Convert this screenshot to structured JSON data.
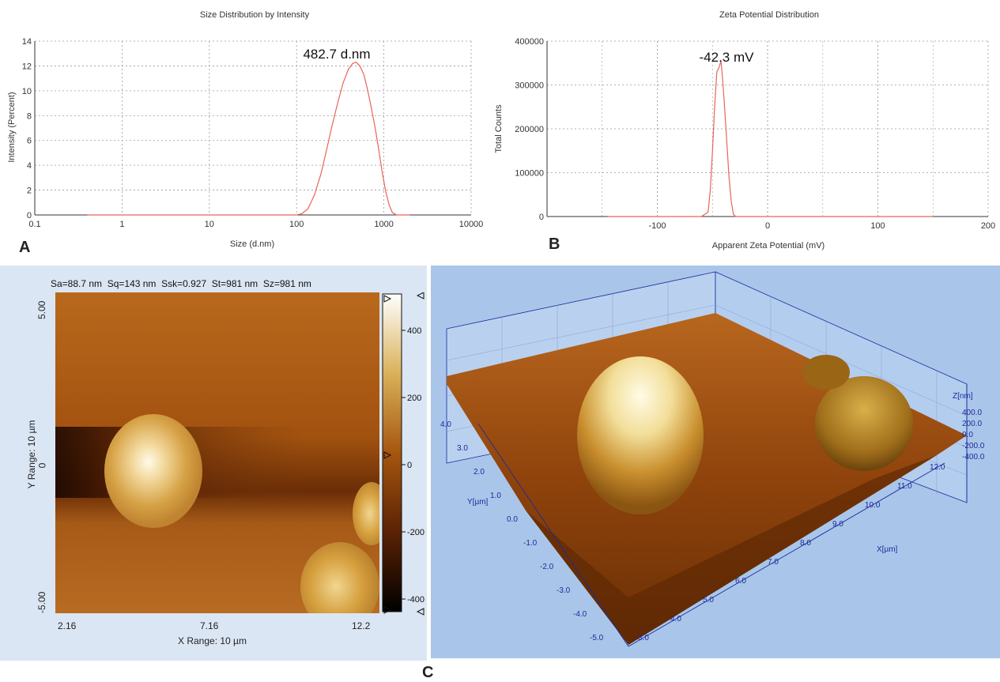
{
  "colors": {
    "line": "#e8645e",
    "grid": "#9a9a9a",
    "afm_2d_bg": "#dbe6f4",
    "afm_3d_bg": "#a9c6ea",
    "axis_3d": "#1d2a9a"
  },
  "panel_labels": {
    "a": "A",
    "b": "B",
    "c": "C"
  },
  "chart_data": [
    {
      "type": "line",
      "id": "size-distribution",
      "title": "Size Distribution by Intensity",
      "xlabel": "Size (d.nm)",
      "ylabel": "Intensity (Percent)",
      "xscale": "log",
      "xlim": [
        0.1,
        10000
      ],
      "ylim": [
        0,
        14
      ],
      "x_ticks": [
        0.1,
        1,
        10,
        100,
        1000,
        10000
      ],
      "x_tick_labels": [
        "0.1",
        "1",
        "10",
        "100",
        "1000",
        "10000"
      ],
      "y_ticks": [
        0,
        2,
        4,
        6,
        8,
        10,
        12,
        14
      ],
      "y_tick_labels": [
        "0",
        "2",
        "4",
        "6",
        "8",
        "10",
        "12",
        "14"
      ],
      "grid": true,
      "annotation": "482.7 d.nm",
      "series": [
        {
          "x": [
            0.4,
            1,
            10,
            100,
            115,
            135,
            160,
            190,
            220,
            255,
            295,
            340,
            390,
            440,
            480,
            530,
            590,
            650,
            720,
            800,
            880,
            960,
            1050,
            1150,
            1250,
            1400,
            1600,
            2000
          ],
          "y": [
            0,
            0,
            0,
            0,
            0.1,
            0.5,
            1.6,
            3.3,
            5.2,
            7.2,
            9.0,
            10.6,
            11.7,
            12.2,
            12.3,
            12.0,
            11.3,
            10.1,
            8.6,
            6.9,
            5.1,
            3.4,
            1.9,
            0.8,
            0.2,
            0,
            0,
            0
          ]
        }
      ]
    },
    {
      "type": "line",
      "id": "zeta-potential",
      "title": "Zeta Potential Distribution",
      "xlabel": "Apparent Zeta Potential (mV)",
      "ylabel": "Total Counts",
      "xlim": [
        -200,
        200
      ],
      "ylim": [
        0,
        400000
      ],
      "x_ticks": [
        -100,
        0,
        100,
        200
      ],
      "x_tick_labels": [
        "-100",
        "0",
        "100",
        "200"
      ],
      "y_ticks": [
        0,
        100000,
        200000,
        300000,
        400000
      ],
      "y_tick_labels": [
        "0",
        "100000",
        "200000",
        "300000",
        "400000"
      ],
      "grid": true,
      "annotation": "-42.3 mV",
      "series": [
        {
          "x": [
            -145,
            -60,
            -54,
            -52,
            -50,
            -48,
            -46,
            -44,
            -42.3,
            -41,
            -39,
            -37,
            -35,
            -33,
            -31,
            -29,
            0,
            100,
            150
          ],
          "y": [
            0,
            0,
            10000,
            60000,
            150000,
            250000,
            330000,
            340000,
            355000,
            320000,
            250000,
            170000,
            90000,
            35000,
            5000,
            0,
            0,
            0,
            0
          ]
        }
      ]
    }
  ],
  "afm_2d": {
    "stats": "Sa=88.7 nm  Sq=143 nm  Ssk=0.927  St=981 nm  Sz=981 nm",
    "y_range_label": "Y Range: 10 µm",
    "x_range_label": "X Range: 10 µm",
    "y_ticks": [
      "5.00",
      "0",
      "-5.00"
    ],
    "x_ticks": [
      "2.16",
      "7.16",
      "12.2"
    ],
    "colorbar_ticks": [
      "400",
      "200",
      "0",
      "-200",
      "-400"
    ]
  },
  "afm_3d": {
    "z_label": "Z[nm]",
    "z_ticks": [
      "400.0",
      "200.0",
      "0.0",
      "-200.0",
      "-400.0"
    ],
    "y_label": "Y[µm]",
    "y_ticks": [
      "4.0",
      "3.0",
      "2.0",
      "1.0",
      "0.0",
      "-1.0",
      "-2.0",
      "-3.0",
      "-4.0",
      "-5.0"
    ],
    "x_label": "X[µm]",
    "x_ticks": [
      "3.0",
      "4.0",
      "5.0",
      "6.0",
      "7.0",
      "8.0",
      "9.0",
      "10.0",
      "11.0",
      "12.0"
    ]
  }
}
